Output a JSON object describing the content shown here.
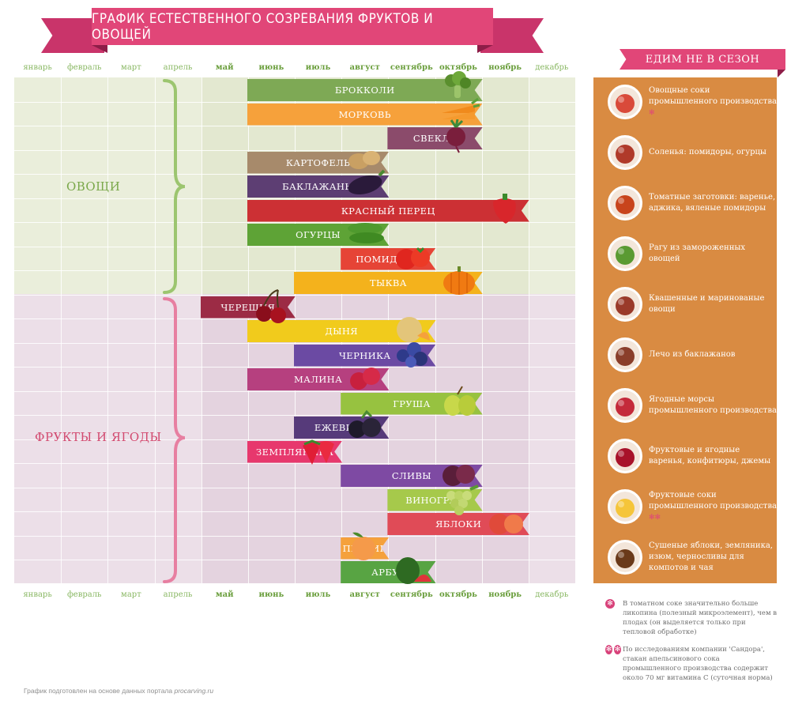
{
  "title": "ГРАФИК ЕСТЕСТВЕННОГО СОЗРЕВАНИЯ ФРУКТОВ И ОВОЩЕЙ",
  "months": [
    "январь",
    "февраль",
    "март",
    "апрель",
    "май",
    "июнь",
    "июль",
    "август",
    "сентябрь",
    "октябрь",
    "ноябрь",
    "декабрь"
  ],
  "groups": {
    "vegetables": "ОВОЩИ",
    "fruits": "ФРУКТЫ И ЯГОДЫ"
  },
  "colors": {
    "title_ribbon": "#e14678",
    "vegetables_label": "#7aa84a",
    "fruits_label": "#d24a70",
    "panel": "#d98b42"
  },
  "produce": [
    {
      "label": "БРОККОЛИ",
      "start_month": "июнь",
      "end_month": "октябрь",
      "color": "#7ea955",
      "icon": "broccoli-icon"
    },
    {
      "label": "МОРКОВЬ",
      "start_month": "июнь",
      "end_month": "октябрь",
      "color": "#f6a13b",
      "icon": "carrot-icon"
    },
    {
      "label": "СВЕКЛА",
      "start_month": "сентябрь",
      "end_month": "октябрь",
      "color": "#8b4b6b",
      "icon": "beet-icon"
    },
    {
      "label": "КАРТОФЕЛЬ",
      "start_month": "июнь",
      "end_month": "август",
      "color": "#a78a6b",
      "icon": "potato-icon"
    },
    {
      "label": "БАКЛАЖАНЫ",
      "start_month": "июнь",
      "end_month": "август",
      "color": "#5d3e73",
      "icon": "eggplant-icon"
    },
    {
      "label": "КРАСНЫЙ ПЕРЕЦ",
      "start_month": "июнь",
      "end_month": "ноябрь",
      "color": "#cc3034",
      "icon": "red-pepper-icon"
    },
    {
      "label": "ОГУРЦЫ",
      "start_month": "июнь",
      "end_month": "август",
      "color": "#5ea336",
      "icon": "cucumber-icon"
    },
    {
      "label": "ПОМИДОРЫ",
      "start_month": "август",
      "end_month": "сентябрь",
      "color": "#e64436",
      "icon": "tomato-icon"
    },
    {
      "label": "ТЫКВА",
      "start_month": "июль",
      "end_month": "октябрь",
      "color": "#f4b21c",
      "icon": "pumpkin-icon"
    },
    {
      "label": "ЧЕРЕШНЯ",
      "start_month": "май",
      "end_month": "июнь",
      "color": "#9c2b45",
      "icon": "cherry-icon"
    },
    {
      "label": "ДЫНЯ",
      "start_month": "июнь",
      "end_month": "сентябрь",
      "color": "#f1cb1c",
      "icon": "melon-icon"
    },
    {
      "label": "ЧЕРНИКА",
      "start_month": "июль",
      "end_month": "сентябрь",
      "color": "#6b4aa3",
      "icon": "blueberry-icon"
    },
    {
      "label": "МАЛИНА",
      "start_month": "июнь",
      "end_month": "август",
      "color": "#b6407f",
      "icon": "raspberry-icon"
    },
    {
      "label": "ГРУША",
      "start_month": "август",
      "end_month": "октябрь",
      "color": "#97c240",
      "icon": "pear-icon"
    },
    {
      "label": "ЕЖЕВИКА",
      "start_month": "июль",
      "end_month": "август",
      "color": "#563a7a",
      "icon": "blackberry-icon"
    },
    {
      "label": "ЗЕМПЛЯНИКА",
      "start_month": "июнь",
      "end_month": "июль",
      "color": "#e7386d",
      "icon": "strawberry-icon"
    },
    {
      "label": "СЛИВЫ",
      "start_month": "август",
      "end_month": "октябрь",
      "color": "#7e4aa3",
      "icon": "plum-icon"
    },
    {
      "label": "ВИНОГРАД",
      "start_month": "сентябрь",
      "end_month": "октябрь",
      "color": "#a6c94b",
      "icon": "grapes-icon"
    },
    {
      "label": "ЯБЛОКИ",
      "start_month": "сентябрь",
      "end_month": "ноябрь",
      "color": "#e04b57",
      "icon": "apple-icon"
    },
    {
      "label": "ПЕРСИК",
      "start_month": "август",
      "end_month": "август",
      "color": "#f5a13c",
      "icon": "peach-icon"
    },
    {
      "label": "АРБУЗ",
      "start_month": "август",
      "end_month": "сентябрь",
      "color": "#58a443",
      "icon": "watermelon-icon"
    }
  ],
  "out_of_season": {
    "title": "ЕДИМ НЕ В СЕЗОН",
    "items": [
      {
        "text": "Овощные соки промышленного производства",
        "mark": "*",
        "icon": "vegetable-juice-icon"
      },
      {
        "text": "Соленья: помидоры, огурцы",
        "mark": "",
        "icon": "pickles-icon"
      },
      {
        "text": "Томатные заготовки: варенье, аджика, вяленые помидоры",
        "mark": "",
        "icon": "tomato-preserves-icon"
      },
      {
        "text": "Рагу из замороженных овощей",
        "mark": "",
        "icon": "frozen-vegetables-icon"
      },
      {
        "text": "Квашенные и маринованые овощи",
        "mark": "",
        "icon": "marinated-vegetables-icon"
      },
      {
        "text": "Лечо из баклажанов",
        "mark": "",
        "icon": "eggplant-lecho-icon"
      },
      {
        "text": "Ягодные морсы промышленного производства",
        "mark": "",
        "icon": "berry-drink-icon"
      },
      {
        "text": "Фруктовые и ягодные варенья, конфитюры, джемы",
        "mark": "",
        "icon": "jam-icon"
      },
      {
        "text": "Фруктовые соки промышленного производства",
        "mark": "**",
        "icon": "fruit-juice-icon"
      },
      {
        "text": "Сушеные яблоки, земляника, изюм, черносливы для компотов и чая",
        "mark": "",
        "icon": "dried-fruit-icon"
      }
    ]
  },
  "footnotes": [
    {
      "mark": "*",
      "text": "В томатном соке значительно больше ликопина (полезный микроэлемент), чем в плодах (он выделяется только при тепловой обработке)"
    },
    {
      "mark": "**",
      "text": "По исследованиям компании 'Сандора', стакан апельсинового сока промышленного производства содержит около 70 мг витамина С (суточная норма)"
    }
  ],
  "source": {
    "prefix": "График подготовлен на основе данных портала ",
    "site": "procarving.ru"
  }
}
